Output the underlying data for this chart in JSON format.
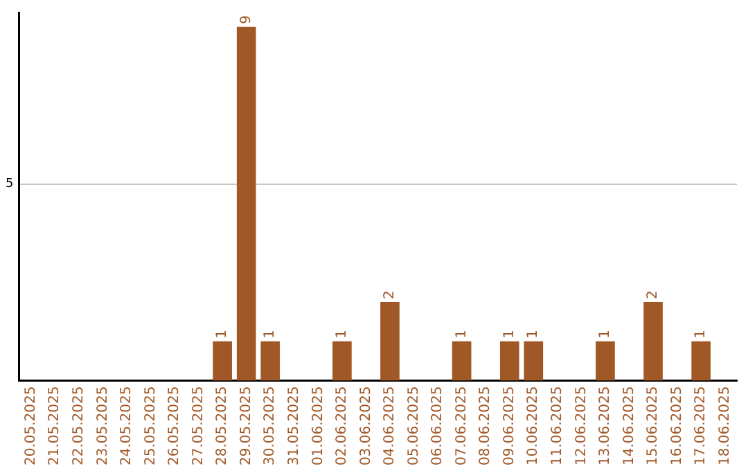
{
  "chart_data": {
    "type": "bar",
    "categories": [
      "20.05.2025",
      "21.05.2025",
      "22.05.2025",
      "23.05.2025",
      "24.05.2025",
      "25.05.2025",
      "26.05.2025",
      "27.05.2025",
      "28.05.2025",
      "29.05.2025",
      "30.05.2025",
      "31.05.2025",
      "01.06.2025",
      "02.06.2025",
      "03.06.2025",
      "04.06.2025",
      "05.06.2025",
      "06.06.2025",
      "07.06.2025",
      "08.06.2025",
      "09.06.2025",
      "10.06.2025",
      "11.06.2025",
      "12.06.2025",
      "13.06.2025",
      "14.06.2025",
      "15.06.2025",
      "16.06.2025",
      "17.06.2025",
      "18.06.2025"
    ],
    "values": [
      0,
      0,
      0,
      0,
      0,
      0,
      0,
      0,
      1,
      9,
      1,
      0,
      0,
      1,
      0,
      2,
      0,
      0,
      1,
      0,
      1,
      1,
      0,
      0,
      1,
      0,
      2,
      0,
      1,
      0
    ],
    "value_labels": [
      null,
      null,
      null,
      null,
      null,
      null,
      null,
      null,
      "1",
      "9",
      "1",
      null,
      null,
      "1",
      null,
      "2",
      null,
      null,
      "1",
      null,
      "1",
      "1",
      null,
      null,
      "1",
      null,
      "2",
      null,
      "1",
      null
    ],
    "color": "#a15827",
    "ylim": [
      0,
      9.35
    ],
    "yticks": [
      5
    ],
    "grid": "y",
    "legend": false
  }
}
